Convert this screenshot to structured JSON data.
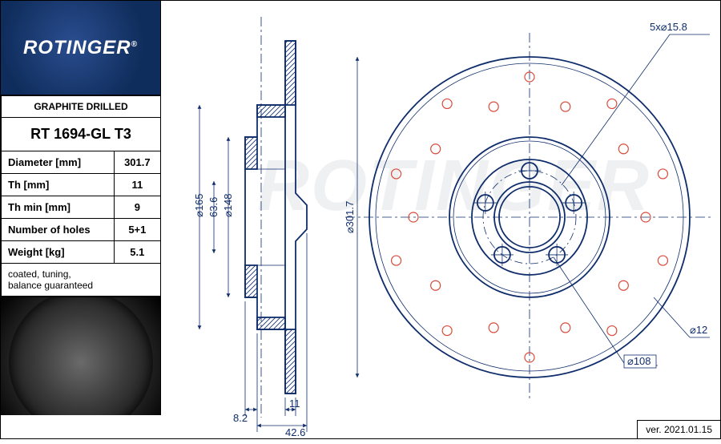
{
  "brand": "ROTINGER",
  "product_line": "GRAPHITE DRILLED",
  "part_number": "RT 1694-GL T3",
  "specs": [
    {
      "label": "Diameter [mm]",
      "value": "301.7"
    },
    {
      "label": "Th [mm]",
      "value": "11"
    },
    {
      "label": "Th min [mm]",
      "value": "9"
    },
    {
      "label": "Number of holes",
      "value": "5+1"
    },
    {
      "label": "Weight [kg]",
      "value": "5.1"
    }
  ],
  "note": "coated, tuning,\nbalance guaranteed",
  "version": "ver. 2021.01.15",
  "colors": {
    "line": "#0f2d6b",
    "hole": "#d94a3a",
    "logo_bg": "#173a73",
    "logo_fg": "#ffffff",
    "watermark": "rgba(120,130,150,0.12)"
  },
  "section_view": {
    "dims": {
      "d165": "⌀165",
      "d63_6": "63.6",
      "d148": "⌀148",
      "t8_2": "8.2",
      "t11": "11",
      "t42_6": "42.6"
    }
  },
  "front_view": {
    "outer_d": 301.7,
    "bolt_circle_label": "5x⌀15.8",
    "bolt_pcd_label": "⌀108",
    "drill_hole_label": "⌀12",
    "outer_d_label": "⌀301.7",
    "bolt_holes": 5,
    "drill_holes_per_ring": 10,
    "drill_rings": 2
  },
  "watermark": "ROTINGER"
}
